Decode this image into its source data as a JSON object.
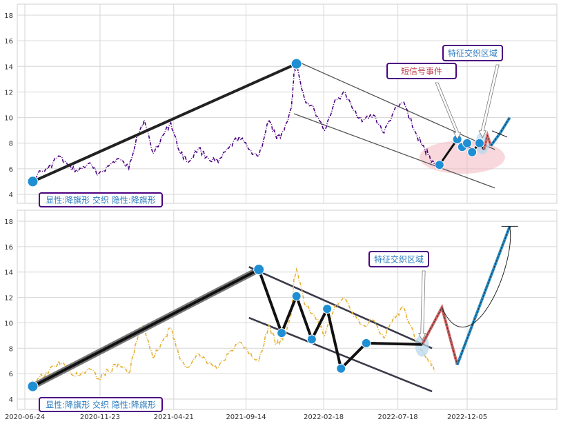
{
  "chart_data": [
    {
      "type": "line",
      "panel": "top",
      "ylim": [
        3,
        19
      ],
      "yticks": [
        4,
        6,
        8,
        10,
        12,
        14,
        16,
        18
      ],
      "grid": true,
      "series": [
        {
          "style": "dash-dot",
          "color": "#4b0082",
          "x": [
            "2020-07-01",
            "2020-07-20",
            "2020-08-10",
            "2020-08-31",
            "2020-09-20",
            "2020-10-10",
            "2020-10-30",
            "2020-11-20",
            "2020-12-10",
            "2020-12-30",
            "2021-01-20",
            "2021-02-05",
            "2021-02-20",
            "2021-03-10",
            "2021-03-30",
            "2021-04-15",
            "2021-05-01",
            "2021-05-20",
            "2021-06-10",
            "2021-06-30",
            "2021-07-20",
            "2021-08-10",
            "2021-08-31",
            "2021-09-20",
            "2021-10-10",
            "2021-10-30",
            "2021-11-15",
            "2021-11-30",
            "2021-12-15",
            "2021-12-20",
            "2021-12-25",
            "2022-01-10",
            "2022-01-30",
            "2022-02-20",
            "2022-03-10",
            "2022-03-30",
            "2022-04-20",
            "2022-05-10",
            "2022-05-30",
            "2022-06-20",
            "2022-07-10",
            "2022-07-30",
            "2022-08-20",
            "2022-09-05",
            "2022-09-20",
            "2022-10-01"
          ],
          "y": [
            4.8,
            5.6,
            6.0,
            7.0,
            6.2,
            5.8,
            6.4,
            5.6,
            6.2,
            6.8,
            6.0,
            8.5,
            9.8,
            7.2,
            8.6,
            9.6,
            7.5,
            6.5,
            7.6,
            6.8,
            6.5,
            7.6,
            8.5,
            7.5,
            7.0,
            9.8,
            8.3,
            9.0,
            10.8,
            13.5,
            14.2,
            11.5,
            10.6,
            9.0,
            11.0,
            12.0,
            10.5,
            9.8,
            10.2,
            8.8,
            10.5,
            11.2,
            9.0,
            7.8,
            7.0,
            6.2
          ]
        }
      ],
      "pattern_line": {
        "x": [
          "2020-07-10",
          "2021-12-25"
        ],
        "y": [
          5.0,
          14.2
        ],
        "color": "#222222"
      },
      "channel_upper": {
        "x": [
          "2021-12-20",
          "2023-01-30"
        ],
        "y": [
          14.5,
          7.5
        ],
        "color": "#555555"
      },
      "channel_lower": {
        "x": [
          "2021-12-20",
          "2023-01-30"
        ],
        "y": [
          10.3,
          4.5
        ],
        "color": "#555555"
      },
      "pivot_points": {
        "x": [
          "2020-07-10",
          "2021-12-25",
          "2022-10-10",
          "2022-11-15",
          "2022-11-25",
          "2022-12-05",
          "2022-12-15",
          "2022-12-30"
        ],
        "y": [
          5.0,
          14.2,
          6.3,
          8.3,
          7.7,
          8.0,
          7.3,
          8.0
        ],
        "color": "#1f8fd4"
      },
      "signal_path": {
        "x": [
          "2022-10-10",
          "2022-11-15",
          "2022-11-25",
          "2022-12-05",
          "2022-12-15",
          "2022-12-30",
          "2023-01-08"
        ],
        "y": [
          6.3,
          8.3,
          7.7,
          8.0,
          7.3,
          8.0,
          7.5
        ],
        "color": "#111111"
      },
      "projection_red": {
        "x": [
          "2023-01-08",
          "2023-01-15",
          "2023-01-22"
        ],
        "y": [
          7.5,
          8.6,
          7.8
        ],
        "color": "#e07070"
      },
      "projection_blue": {
        "x": [
          "2023-01-22",
          "2023-02-10",
          "2023-03-01"
        ],
        "y": [
          7.8,
          8.8,
          10.0
        ],
        "color": "#2a8fc8"
      },
      "event_region": {
        "center_x": "2022-11-25",
        "center_y": 6.9,
        "color": "#f2b8c0"
      },
      "feature_region": {
        "center_x": "2023-01-05",
        "center_y": 8.0,
        "color": "#b8d8ee"
      },
      "labels": [
        {
          "text": "显性:降旗形 交织 隐性:降旗形",
          "color": "#2a7bbf"
        },
        {
          "text": "短信号事件",
          "color": "#c04050"
        },
        {
          "text": "特征交织区域",
          "color": "#2a7bbf"
        }
      ]
    },
    {
      "type": "line",
      "panel": "bottom",
      "ylim": [
        3,
        19
      ],
      "yticks": [
        4,
        6,
        8,
        10,
        12,
        14,
        16,
        18
      ],
      "xticks": [
        "2020-06-24",
        "2020-11-23",
        "2021-04-21",
        "2021-09-14",
        "2022-02-18",
        "2022-07-18",
        "2022-12-05"
      ],
      "grid": true,
      "series": [
        {
          "style": "dash-dot",
          "color": "#e6b030",
          "x": [
            "2020-07-01",
            "2020-07-20",
            "2020-08-10",
            "2020-08-31",
            "2020-09-20",
            "2020-10-10",
            "2020-10-30",
            "2020-11-20",
            "2020-12-10",
            "2020-12-30",
            "2021-01-20",
            "2021-02-05",
            "2021-02-20",
            "2021-03-10",
            "2021-03-30",
            "2021-04-15",
            "2021-05-01",
            "2021-05-20",
            "2021-06-10",
            "2021-06-30",
            "2021-07-20",
            "2021-08-10",
            "2021-08-31",
            "2021-09-20",
            "2021-10-10",
            "2021-10-30",
            "2021-11-15",
            "2021-11-30",
            "2021-12-15",
            "2021-12-20",
            "2021-12-25",
            "2022-01-10",
            "2022-01-30",
            "2022-02-20",
            "2022-03-10",
            "2022-03-30",
            "2022-04-20",
            "2022-05-10",
            "2022-05-30",
            "2022-06-20",
            "2022-07-10",
            "2022-07-30",
            "2022-08-20",
            "2022-09-05",
            "2022-09-20",
            "2022-10-01"
          ],
          "y": [
            4.8,
            5.6,
            6.0,
            7.0,
            6.2,
            5.8,
            6.4,
            5.6,
            6.2,
            6.8,
            6.0,
            8.5,
            9.8,
            7.2,
            8.6,
            9.6,
            7.5,
            6.5,
            7.6,
            6.8,
            6.5,
            7.6,
            8.5,
            7.5,
            7.0,
            9.8,
            8.3,
            9.0,
            10.8,
            13.5,
            14.2,
            11.5,
            10.6,
            9.0,
            11.0,
            12.0,
            10.5,
            9.8,
            10.2,
            8.8,
            10.5,
            11.2,
            9.0,
            7.8,
            7.0,
            6.2
          ]
        }
      ],
      "pattern_line": {
        "x": [
          "2020-07-10",
          "2021-10-10"
        ],
        "y": [
          5.0,
          14.2
        ],
        "color": "#111111"
      },
      "channel_upper": {
        "x": [
          "2021-09-20",
          "2022-09-25"
        ],
        "y": [
          14.4,
          8.0
        ],
        "color": "#3a3a4a"
      },
      "channel_lower": {
        "x": [
          "2021-09-20",
          "2022-09-25"
        ],
        "y": [
          10.4,
          4.6
        ],
        "color": "#3a3a4a"
      },
      "pivot_points": {
        "x": [
          "2020-07-10",
          "2021-10-10",
          "2021-11-25",
          "2021-12-25",
          "2022-01-25",
          "2022-02-25",
          "2022-03-25",
          "2022-05-15"
        ],
        "y": [
          5.0,
          14.2,
          9.2,
          12.1,
          8.7,
          11.1,
          6.4,
          8.4
        ],
        "color": "#1f8fd4"
      },
      "signal_path": {
        "x": [
          "2021-10-10",
          "2021-11-25",
          "2021-12-25",
          "2022-01-25",
          "2022-02-25",
          "2022-03-25",
          "2022-05-15",
          "2022-09-05"
        ],
        "y": [
          14.2,
          9.2,
          12.1,
          8.7,
          11.1,
          6.4,
          8.4,
          8.3
        ],
        "color": "#111111"
      },
      "projection_red": {
        "x": [
          "2022-09-05",
          "2022-10-15",
          "2022-11-15"
        ],
        "y": [
          8.3,
          11.2,
          6.7
        ],
        "color": "#d06060"
      },
      "projection_blue": {
        "x": [
          "2022-11-15",
          "2023-03-01"
        ],
        "y": [
          6.7,
          17.6
        ],
        "color": "#2a8fc8"
      },
      "feature_region": {
        "center_x": "2022-09-05",
        "center_y": 8.2,
        "color": "#b8d8ee"
      },
      "labels": [
        {
          "text": "显性:降旗形 交织 隐性:降旗形",
          "color": "#2a7bbf"
        },
        {
          "text": "特征交织区域",
          "color": "#2a7bbf"
        }
      ]
    }
  ]
}
